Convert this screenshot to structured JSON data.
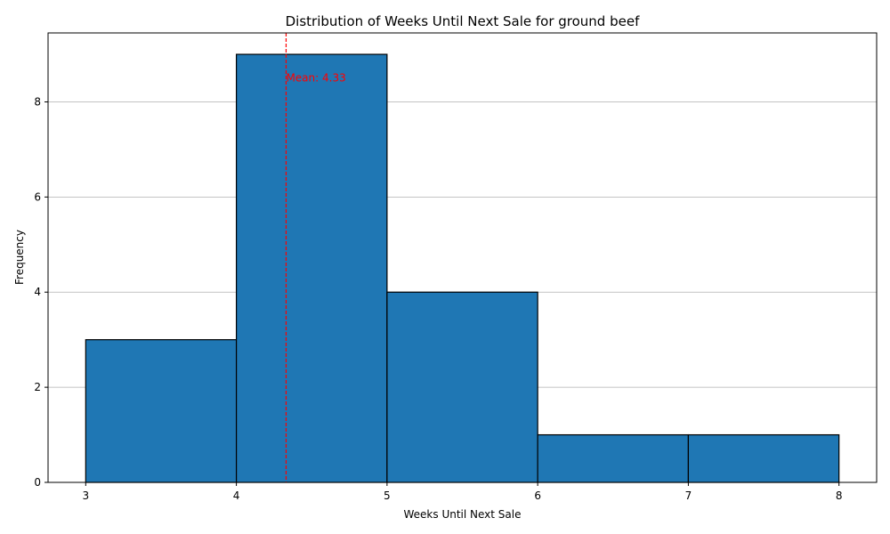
{
  "chart_data": {
    "type": "bar",
    "title": "Distribution of Weeks Until Next Sale for ground beef",
    "xlabel": "Weeks Until Next Sale",
    "ylabel": "Frequency",
    "bins": [
      {
        "start": 3,
        "end": 4,
        "value": 3
      },
      {
        "start": 4,
        "end": 5,
        "value": 9
      },
      {
        "start": 5,
        "end": 6,
        "value": 4
      },
      {
        "start": 6,
        "end": 7,
        "value": 1
      },
      {
        "start": 7,
        "end": 8,
        "value": 1
      }
    ],
    "xlim": [
      2.75,
      8.25
    ],
    "ylim": [
      0,
      9.45
    ],
    "xticks": [
      3,
      4,
      5,
      6,
      7,
      8
    ],
    "yticks": [
      0,
      2,
      4,
      6,
      8
    ],
    "grid": "y",
    "mean": {
      "value": 4.33,
      "label": "Mean: 4.33",
      "color": "#ff0000"
    },
    "bar_color": "#1f77b4",
    "edge_color": "#000000",
    "grid_color": "#b0b0b0"
  }
}
